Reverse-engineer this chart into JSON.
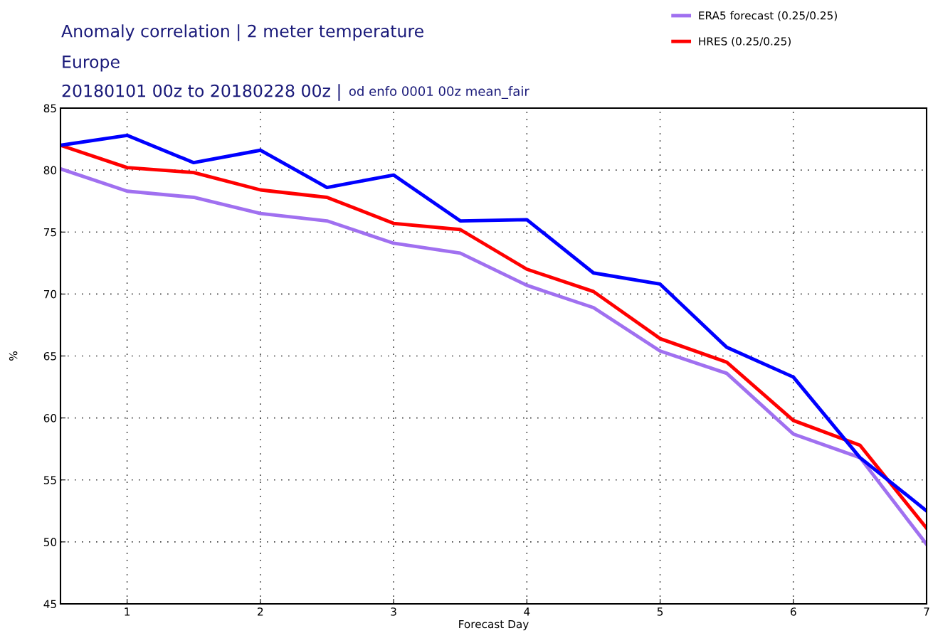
{
  "chart_data": {
    "type": "line",
    "title": "Anomaly correlation | 2 meter temperature",
    "subtitle": "Europe\n20180101 00z to 20180228 00z |",
    "annotations": [
      "od enfo 0001 00z mean_fair"
    ],
    "xlabel": "Forecast Day",
    "ylabel": "%",
    "x": [
      0.5,
      1,
      1.5,
      2,
      2.5,
      3,
      3.5,
      4,
      4.5,
      5,
      5.5,
      6,
      6.5,
      7
    ],
    "series": [
      {
        "name": "ERA5 forecast (0.25/0.25)",
        "color": "#a070f0",
        "values": [
          80.1,
          78.3,
          77.8,
          76.5,
          75.9,
          74.1,
          73.3,
          70.7,
          68.9,
          65.4,
          63.6,
          58.7,
          56.8,
          49.8
        ]
      },
      {
        "name": "HRES (0.25/0.25)",
        "color": "#ff0000",
        "values": [
          82.0,
          80.2,
          79.8,
          78.4,
          77.8,
          75.7,
          75.2,
          72.0,
          70.2,
          66.4,
          64.5,
          59.8,
          57.8,
          51.1
        ]
      },
      {
        "color": "#0000ff",
        "values": [
          82.0,
          82.8,
          80.6,
          81.6,
          78.6,
          79.6,
          75.9,
          76.0,
          71.7,
          70.8,
          65.7,
          63.3,
          56.8,
          52.5
        ]
      }
    ],
    "xlim": [
      0.5,
      7
    ],
    "xticks": [
      1,
      2,
      3,
      4,
      5,
      6,
      7
    ],
    "ylim": [
      45,
      85
    ],
    "yticks": [
      45,
      50,
      55,
      60,
      65,
      70,
      75,
      80,
      85
    ],
    "grid": true,
    "legend": "top right",
    "marker": "none",
    "line_style": "solid"
  }
}
